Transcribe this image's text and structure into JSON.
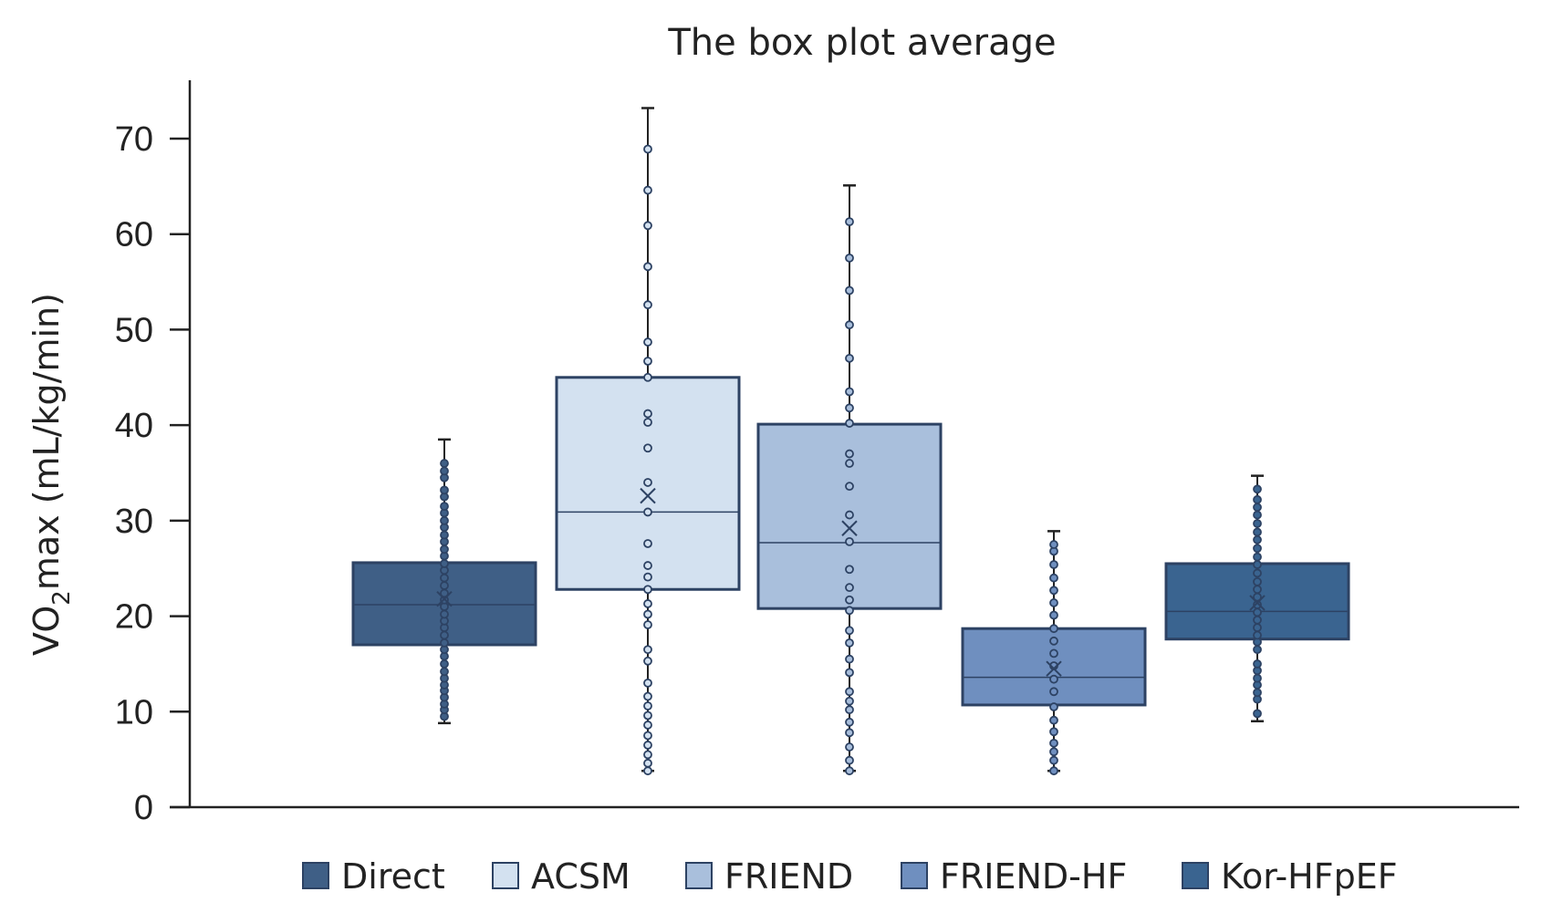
{
  "chart_data": {
    "type": "box",
    "title": "The box plot average",
    "ylabel": {
      "pre": "VO",
      "sub": "2",
      "post": "max (mL/kg/min)"
    },
    "xlabel": "",
    "ylim": [
      0,
      75
    ],
    "yticks": [
      0,
      10,
      20,
      30,
      40,
      50,
      60,
      70
    ],
    "grid": false,
    "legend_position": "bottom",
    "series": [
      {
        "name": "Direct",
        "color": "#3f5f86",
        "min": 8.8,
        "q1": 17.0,
        "median": 21.2,
        "q3": 25.6,
        "max": 38.5,
        "mean": 21.8,
        "points": [
          9.5,
          10.2,
          10.8,
          11.5,
          12.2,
          12.8,
          13.5,
          14.2,
          15.0,
          15.8,
          16.5,
          17.2,
          18.0,
          18.8,
          19.5,
          20.2,
          21.0,
          21.7,
          22.4,
          23.2,
          24.0,
          24.8,
          25.5,
          26.3,
          27.0,
          27.8,
          28.5,
          29.3,
          30.0,
          30.8,
          31.5,
          32.5,
          33.2,
          34.5,
          35.2,
          36.0
        ]
      },
      {
        "name": "ACSM",
        "color": "#d3e1f0",
        "min": 3.8,
        "q1": 22.8,
        "median": 30.9,
        "q3": 45.0,
        "max": 73.2,
        "mean": 32.6,
        "points": [
          3.8,
          4.6,
          5.5,
          6.5,
          7.5,
          8.6,
          9.6,
          10.6,
          11.6,
          13.0,
          15.3,
          16.5,
          19.1,
          20.2,
          21.3,
          22.8,
          24.1,
          25.3,
          27.6,
          30.9,
          34.0,
          37.6,
          40.3,
          41.2,
          45.0,
          46.7,
          48.7,
          52.6,
          56.6,
          60.9,
          64.6,
          68.9
        ]
      },
      {
        "name": "FRIEND",
        "color": "#a9bfdc",
        "min": 3.8,
        "q1": 20.8,
        "median": 27.7,
        "q3": 40.1,
        "max": 65.1,
        "mean": 29.2,
        "points": [
          3.8,
          4.9,
          6.3,
          7.8,
          8.9,
          10.2,
          11.1,
          12.1,
          14.1,
          15.5,
          17.2,
          18.5,
          20.6,
          21.7,
          23.0,
          24.9,
          27.8,
          30.6,
          33.6,
          36.0,
          37.0,
          40.2,
          41.8,
          43.5,
          47.0,
          50.5,
          54.1,
          57.5,
          61.3
        ]
      },
      {
        "name": "FRIEND-HF",
        "color": "#6f8fbf",
        "min": 3.8,
        "q1": 10.7,
        "median": 13.6,
        "q3": 18.7,
        "max": 28.9,
        "mean": 14.5,
        "points": [
          3.8,
          4.9,
          5.8,
          6.7,
          7.9,
          9.1,
          10.5,
          12.1,
          13.4,
          14.8,
          16.1,
          17.4,
          18.7,
          20.1,
          21.4,
          22.7,
          24.0,
          25.4,
          26.8,
          27.5
        ]
      },
      {
        "name": "Kor-HFpEF",
        "color": "#3a6490",
        "min": 9.0,
        "q1": 17.6,
        "median": 20.5,
        "q3": 25.5,
        "max": 34.7,
        "mean": 21.4,
        "points": [
          9.8,
          11.3,
          12.0,
          12.8,
          13.5,
          14.3,
          15.0,
          16.5,
          17.3,
          18.0,
          18.8,
          19.6,
          20.4,
          21.2,
          22.0,
          22.8,
          23.6,
          24.5,
          25.4,
          26.2,
          27.1,
          28.0,
          28.8,
          29.7,
          30.6,
          31.4,
          32.2,
          33.3
        ]
      }
    ]
  }
}
